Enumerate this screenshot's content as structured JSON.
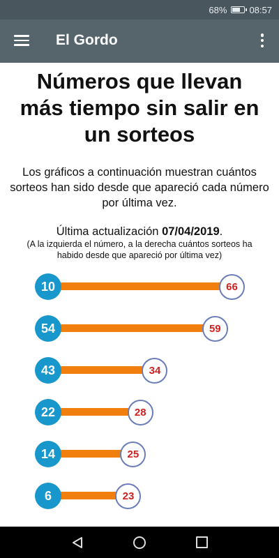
{
  "status_bar": {
    "battery": "68%",
    "time": "08:57",
    "battery_level": 0.68
  },
  "app_bar": {
    "title": "El Gordo",
    "menu_icon": "hamburger-menu-icon",
    "more_icon": "more-vert-icon"
  },
  "main": {
    "title": "Números que llevan más tiempo sin salir en un sorteos",
    "intro": "Los gráficos a continuación muestran cuántos sorteos han sido desde que apareció cada número por última vez.",
    "updated_label": "Última actualización",
    "updated_date": "07/04/2019",
    "updated_suffix": ".",
    "note": "(A la izquierda el número, a la derecha cuántos sorteos ha habido desde que apareció por última vez)"
  },
  "rows": [
    {
      "number": "10",
      "count": "66"
    },
    {
      "number": "54",
      "count": "59"
    },
    {
      "number": "43",
      "count": "34"
    },
    {
      "number": "22",
      "count": "28"
    },
    {
      "number": "14",
      "count": "25"
    },
    {
      "number": "6",
      "count": "23"
    }
  ],
  "colors": {
    "number_circle": "#1797cc",
    "bar": "#f07f0d",
    "count_text": "#d01f1f",
    "count_border": "#6a7db8"
  },
  "nav_bar": {
    "back_icon": "back-triangle-icon",
    "home_icon": "home-circle-icon",
    "recents_icon": "recents-square-icon"
  }
}
